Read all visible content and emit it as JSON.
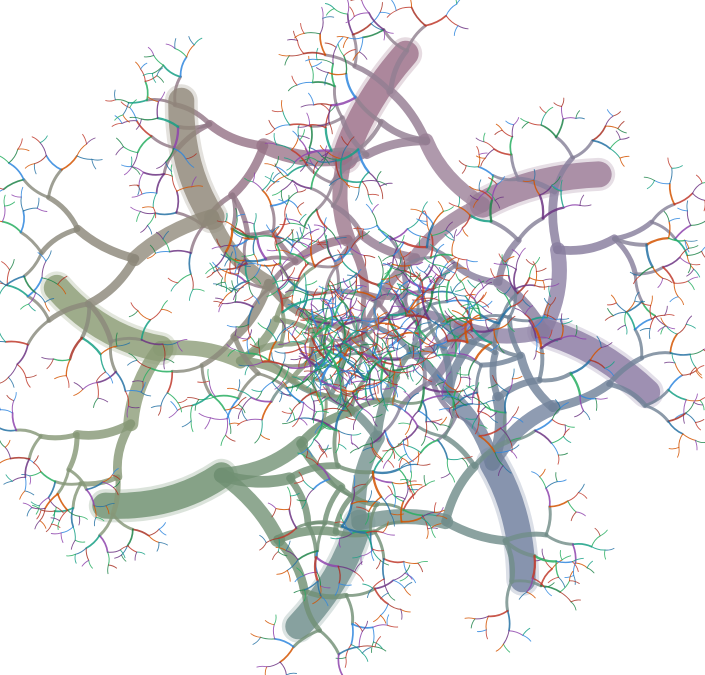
{
  "artwork": {
    "kind": "radial fractal tree illustration",
    "arm_count": 8,
    "background": "#ffffff",
    "arm_colors": [
      "#9b6f88",
      "#9a7a96",
      "#8a7aa3",
      "#6f7f9e",
      "#6f8e8c",
      "#6e9070",
      "#8a9b74",
      "#8f8778"
    ],
    "twig_colors": [
      "#c0392b",
      "#8e44ad",
      "#2e86de",
      "#27ae60",
      "#16a085",
      "#d35400",
      "#6c3483",
      "#1e8449",
      "#a93226",
      "#2471a3"
    ]
  }
}
